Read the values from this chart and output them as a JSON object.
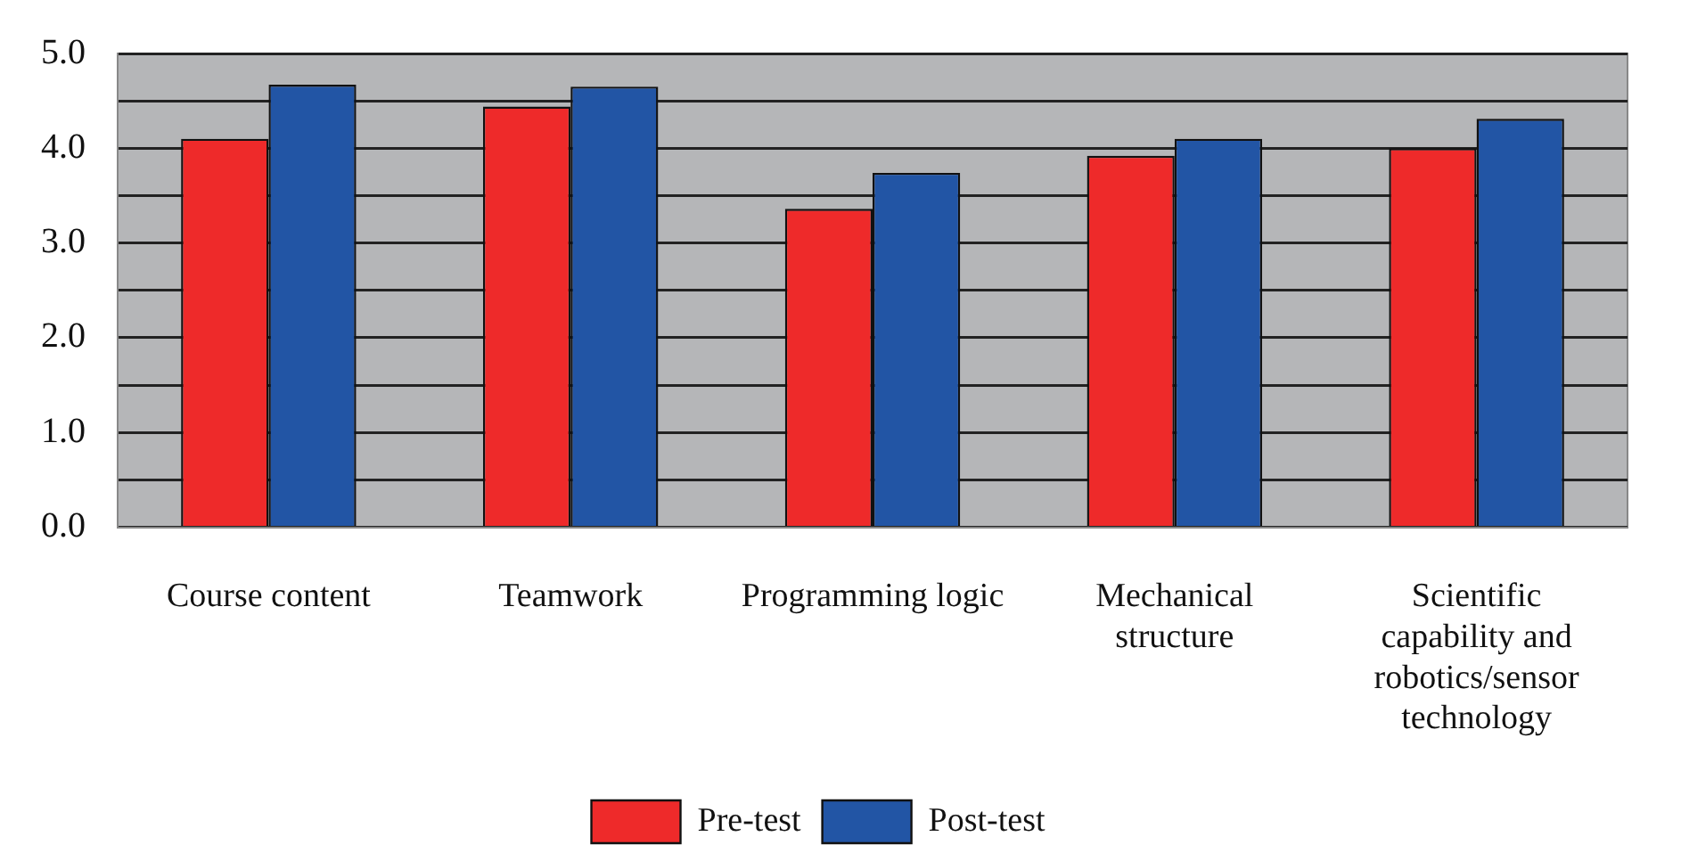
{
  "chart_data": {
    "type": "bar",
    "categories": [
      "Course content",
      "Teamwork",
      "Programming logic",
      "Mechanical structure",
      "Scientific capability and robotics/sensor technology"
    ],
    "series": [
      {
        "name": "Pre-test",
        "color": "#ee2a2a",
        "values": [
          4.1,
          4.44,
          3.36,
          3.92,
          4.0
        ]
      },
      {
        "name": "Post-test",
        "color": "#2255a5",
        "values": [
          4.67,
          4.65,
          3.74,
          4.1,
          4.31
        ]
      }
    ],
    "ylim": [
      0,
      5
    ],
    "yticks": [
      {
        "value": 0,
        "label": "0.0"
      },
      {
        "value": 0.5,
        "label": null
      },
      {
        "value": 1,
        "label": "1.0"
      },
      {
        "value": 1.5,
        "label": null
      },
      {
        "value": 2,
        "label": "2.0"
      },
      {
        "value": 2.5,
        "label": null
      },
      {
        "value": 3,
        "label": "3.0"
      },
      {
        "value": 3.5,
        "label": null
      },
      {
        "value": 4,
        "label": "4.0"
      },
      {
        "value": 4.5,
        "label": null
      },
      {
        "value": 5,
        "label": "5.0"
      }
    ],
    "grid": "y",
    "legend": "bottom"
  }
}
